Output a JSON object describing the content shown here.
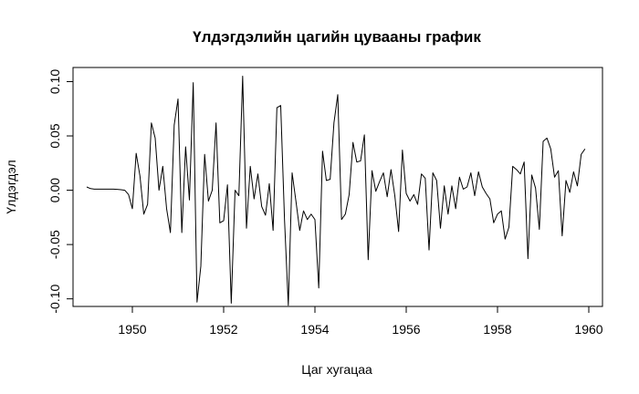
{
  "chart_data": {
    "type": "line",
    "title": "Үлдэгдэлийн цагийн цувааны график",
    "xlabel": "Цаг хугацаа",
    "ylabel": "Үлдэгдэл",
    "xlim": [
      1948.7,
      1960.3
    ],
    "ylim": [
      -0.107,
      0.113
    ],
    "xticks": [
      1950,
      1952,
      1954,
      1956,
      1958,
      1960
    ],
    "xtick_labels": [
      "1950",
      "1952",
      "1954",
      "1956",
      "1958",
      "1960"
    ],
    "yticks": [
      -0.1,
      -0.05,
      0.0,
      0.05,
      0.1
    ],
    "ytick_labels": [
      "-0.10",
      "-0.05",
      "0.00",
      "0.05",
      "0.10"
    ],
    "grid": false,
    "series": [
      {
        "color": "#000000",
        "x_start": 1949.0,
        "x_step": 0.0833333,
        "values": [
          0.003,
          0.0015,
          0.001,
          0.001,
          0.001,
          0.001,
          0.001,
          0.001,
          0.0008,
          0.0005,
          0.0,
          -0.004,
          -0.017,
          0.034,
          0.013,
          -0.022,
          -0.013,
          0.062,
          0.048,
          0.0,
          0.022,
          -0.017,
          -0.039,
          0.06,
          0.084,
          -0.039,
          0.04,
          -0.009,
          0.099,
          -0.103,
          -0.07,
          0.033,
          -0.01,
          0.0,
          0.062,
          -0.03,
          -0.028,
          0.005,
          -0.104,
          0.0,
          -0.005,
          0.105,
          -0.035,
          0.022,
          -0.008,
          0.015,
          -0.015,
          -0.023,
          0.006,
          -0.037,
          0.076,
          0.078,
          -0.027,
          -0.106,
          0.016,
          -0.01,
          -0.037,
          -0.019,
          -0.027,
          -0.022,
          -0.027,
          -0.09,
          0.036,
          0.009,
          0.01,
          0.062,
          0.088,
          -0.027,
          -0.022,
          -0.004,
          0.044,
          0.026,
          0.027,
          0.051,
          -0.064,
          0.018,
          -0.001,
          0.008,
          0.016,
          -0.006,
          0.019,
          -0.005,
          -0.038,
          0.037,
          -0.003,
          -0.01,
          -0.004,
          -0.013,
          0.015,
          0.011,
          -0.055,
          0.016,
          0.009,
          -0.035,
          0.004,
          -0.022,
          0.004,
          -0.017,
          0.012,
          0.001,
          0.003,
          0.016,
          -0.005,
          0.017,
          0.003,
          -0.003,
          -0.008,
          -0.03,
          -0.022,
          -0.019,
          -0.045,
          -0.034,
          0.022,
          0.019,
          0.015,
          0.026,
          -0.063,
          0.014,
          0.002,
          -0.036,
          0.045,
          0.048,
          0.038,
          0.012,
          0.018,
          -0.042,
          0.009,
          -0.002,
          0.017,
          0.004,
          0.033,
          0.038
        ]
      }
    ]
  }
}
